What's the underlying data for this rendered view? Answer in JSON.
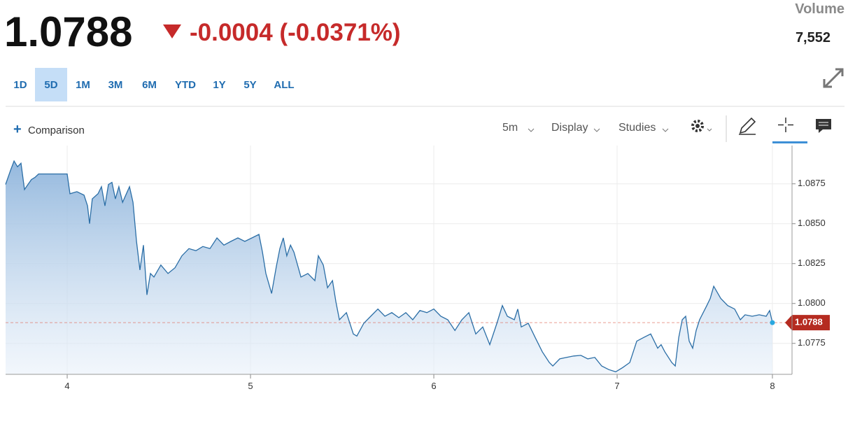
{
  "header": {
    "price": "1.0788",
    "change": "-0.0004 (-0.0371%)",
    "volume_label": "Volume",
    "volume": "7,552"
  },
  "ranges": [
    "1D",
    "5D",
    "1M",
    "3M",
    "6M",
    "YTD",
    "1Y",
    "5Y",
    "ALL"
  ],
  "selected_range": "5D",
  "toolbar": {
    "comparison": "Comparison",
    "interval": "5m",
    "display": "Display",
    "studies": "Studies"
  },
  "chart_data": {
    "type": "area",
    "color": "#2b6ea6",
    "grid": true,
    "last_price": 1.0788,
    "xlim": [
      3.664,
      7.954
    ],
    "ylim": [
      1.07556,
      1.0899
    ],
    "xticks": [
      4,
      5,
      6,
      7,
      {
        "value": 7.847,
        "label": "8"
      }
    ],
    "yticks": [
      {
        "value": 1.0775,
        "label": "1.0775"
      },
      {
        "value": 1.08,
        "label": "1.0800"
      },
      {
        "value": 1.0825,
        "label": "1.0825"
      },
      {
        "value": 1.085,
        "label": "1.0850"
      },
      {
        "value": 1.0875,
        "label": "1.0875"
      }
    ],
    "x": [
      3.664,
      3.691,
      3.71,
      3.729,
      3.748,
      3.767,
      3.786,
      3.805,
      3.824,
      3.844,
      3.863,
      4,
      4.015,
      4.053,
      4.092,
      4.111,
      4.122,
      4.137,
      4.168,
      4.187,
      4.206,
      4.225,
      4.244,
      4.263,
      4.282,
      4.302,
      4.34,
      4.359,
      4.378,
      4.397,
      4.416,
      4.435,
      4.454,
      4.473,
      4.511,
      4.55,
      4.588,
      4.626,
      4.664,
      4.702,
      4.74,
      4.779,
      4.817,
      4.855,
      4.893,
      4.931,
      4.969,
      5.008,
      5.046,
      5.065,
      5.084,
      5.115,
      5.141,
      5.16,
      5.179,
      5.198,
      5.218,
      5.237,
      5.275,
      5.313,
      5.351,
      5.37,
      5.397,
      5.42,
      5.447,
      5.466,
      5.485,
      5.523,
      5.561,
      5.58,
      5.618,
      5.656,
      5.695,
      5.733,
      5.771,
      5.809,
      5.847,
      5.885,
      5.924,
      5.962,
      6,
      6.038,
      6.076,
      6.115,
      6.153,
      6.191,
      6.229,
      6.267,
      6.305,
      6.344,
      6.374,
      6.401,
      6.439,
      6.458,
      6.477,
      6.515,
      6.553,
      6.592,
      6.63,
      6.649,
      6.687,
      6.725,
      6.763,
      6.802,
      6.84,
      6.878,
      6.916,
      6.954,
      6.992,
      7.031,
      7.069,
      7.107,
      7.145,
      7.183,
      7.221,
      7.24,
      7.26,
      7.298,
      7.317,
      7.336,
      7.355,
      7.374,
      7.393,
      7.412,
      7.431,
      7.45,
      7.489,
      7.508,
      7.527,
      7.565,
      7.603,
      7.641,
      7.672,
      7.698,
      7.737,
      7.775,
      7.813,
      7.832,
      7.847
    ],
    "values": [
      1.08746,
      1.08835,
      1.08893,
      1.08857,
      1.08879,
      1.08714,
      1.08746,
      1.08777,
      1.0879,
      1.08812,
      1.08812,
      1.08812,
      1.08688,
      1.08701,
      1.08679,
      1.08612,
      1.085,
      1.08656,
      1.08688,
      1.08732,
      1.08612,
      1.08746,
      1.08759,
      1.08656,
      1.08732,
      1.08634,
      1.08732,
      1.08634,
      1.08389,
      1.0821,
      1.08366,
      1.08054,
      1.08188,
      1.08166,
      1.08241,
      1.08188,
      1.08224,
      1.08299,
      1.08344,
      1.08331,
      1.08357,
      1.08344,
      1.08411,
      1.08366,
      1.08389,
      1.08411,
      1.08389,
      1.08411,
      1.08433,
      1.08322,
      1.08188,
      1.08063,
      1.08233,
      1.08344,
      1.08411,
      1.08299,
      1.08366,
      1.08322,
      1.08166,
      1.08188,
      1.08143,
      1.08299,
      1.08241,
      1.08099,
      1.08143,
      1.0801,
      1.07898,
      1.07943,
      1.07809,
      1.07796,
      1.07876,
      1.0792,
      1.07965,
      1.0792,
      1.07943,
      1.07911,
      1.07943,
      1.07898,
      1.07956,
      1.07943,
      1.07965,
      1.0792,
      1.07898,
      1.07831,
      1.07898,
      1.07943,
      1.07809,
      1.07853,
      1.07742,
      1.07876,
      1.07987,
      1.0792,
      1.07898,
      1.07965,
      1.07853,
      1.07876,
      1.07787,
      1.07697,
      1.0763,
      1.07608,
      1.07653,
      1.07662,
      1.07671,
      1.07675,
      1.07653,
      1.07662,
      1.07608,
      1.07586,
      1.07572,
      1.07599,
      1.0763,
      1.07764,
      1.07787,
      1.07809,
      1.0772,
      1.07742,
      1.07697,
      1.0763,
      1.07608,
      1.07787,
      1.07898,
      1.0792,
      1.07764,
      1.0772,
      1.07831,
      1.07898,
      1.07987,
      1.08032,
      1.08108,
      1.08032,
      1.07987,
      1.07965,
      1.07898,
      1.07929,
      1.0792,
      1.07929,
      1.0792,
      1.07956,
      1.0788
    ]
  }
}
